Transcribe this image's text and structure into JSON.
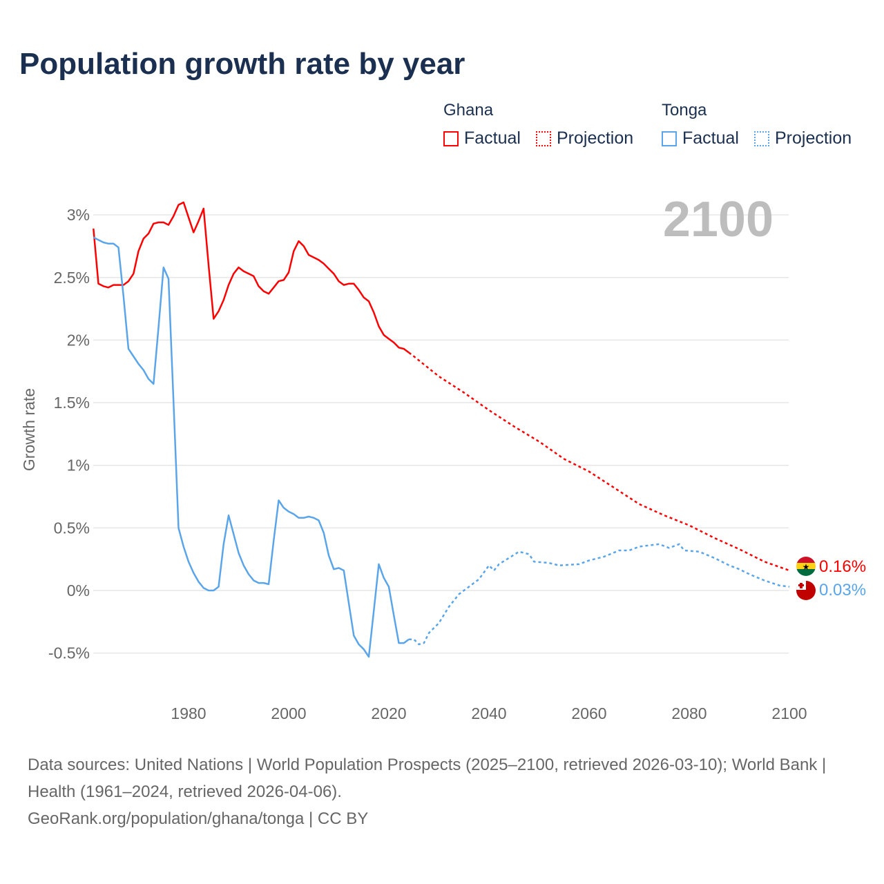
{
  "title": "Population growth rate by year",
  "legend": {
    "groups": [
      {
        "name": "Ghana",
        "factual": "Factual",
        "projection": "Projection",
        "color": "#ff0000"
      },
      {
        "name": "Tonga",
        "factual": "Factual",
        "projection": "Projection",
        "color": "#5aa5ea"
      }
    ]
  },
  "year_label": "2100",
  "end_labels": {
    "ghana": "0.16%",
    "tonga": "0.03%"
  },
  "source": {
    "line1": "Data sources: United Nations | World Population Prospects (2025–2100, retrieved 2026-03-10); World Bank | Health (1961–2024, retrieved 2026-04-06).",
    "line2": "GeoRank.org/population/ghana/tonga | CC BY"
  },
  "chart_data": {
    "type": "line",
    "title": "Population growth rate by year",
    "xlabel": "",
    "ylabel": "Growth rate",
    "xlim": [
      1961,
      2100
    ],
    "ylim": [
      -0.7,
      3.2
    ],
    "x_ticks": [
      1980,
      2000,
      2020,
      2040,
      2060,
      2080,
      2100
    ],
    "x_tick_labels": [
      "1980",
      "2000",
      "2020",
      "2040",
      "2060",
      "2080",
      "2100"
    ],
    "y_ticks": [
      -0.5,
      0,
      0.5,
      1,
      1.5,
      2,
      2.5,
      3
    ],
    "y_tick_labels": [
      "-0.5%",
      "0%",
      "0.5%",
      "1%",
      "1.5%",
      "2%",
      "2.5%",
      "3%"
    ],
    "grid": true,
    "legend_position": "top-right",
    "series": [
      {
        "name": "Ghana Factual",
        "color": "#ff0000",
        "style": "solid",
        "x": [
          1961,
          1962,
          1963,
          1964,
          1965,
          1966,
          1967,
          1968,
          1969,
          1970,
          1971,
          1972,
          1973,
          1974,
          1975,
          1976,
          1977,
          1978,
          1979,
          1980,
          1981,
          1982,
          1983,
          1984,
          1985,
          1986,
          1987,
          1988,
          1989,
          1990,
          1991,
          1992,
          1993,
          1994,
          1995,
          1996,
          1997,
          1998,
          1999,
          2000,
          2001,
          2002,
          2003,
          2004,
          2005,
          2006,
          2007,
          2008,
          2009,
          2010,
          2011,
          2012,
          2013,
          2014,
          2015,
          2016,
          2017,
          2018,
          2019,
          2020,
          2021,
          2022,
          2023,
          2024
        ],
        "y": [
          2.89,
          2.45,
          2.43,
          2.42,
          2.44,
          2.44,
          2.44,
          2.47,
          2.53,
          2.71,
          2.81,
          2.85,
          2.93,
          2.94,
          2.94,
          2.92,
          2.99,
          3.08,
          3.1,
          2.98,
          2.86,
          2.95,
          3.05,
          2.6,
          2.17,
          2.23,
          2.32,
          2.44,
          2.53,
          2.58,
          2.55,
          2.53,
          2.51,
          2.43,
          2.39,
          2.37,
          2.42,
          2.47,
          2.48,
          2.54,
          2.71,
          2.79,
          2.75,
          2.68,
          2.66,
          2.64,
          2.61,
          2.57,
          2.53,
          2.47,
          2.44,
          2.45,
          2.45,
          2.4,
          2.34,
          2.31,
          2.22,
          2.11,
          2.04,
          2.01,
          1.98,
          1.94,
          1.93,
          1.9
        ]
      },
      {
        "name": "Ghana Projection",
        "color": "#ff0000",
        "style": "dotted",
        "x": [
          2024,
          2025,
          2030,
          2035,
          2040,
          2045,
          2050,
          2055,
          2060,
          2065,
          2070,
          2075,
          2080,
          2085,
          2090,
          2095,
          2100
        ],
        "y": [
          1.9,
          1.87,
          1.71,
          1.58,
          1.44,
          1.31,
          1.19,
          1.05,
          0.95,
          0.82,
          0.69,
          0.6,
          0.52,
          0.42,
          0.33,
          0.23,
          0.16
        ]
      },
      {
        "name": "Tonga Factual",
        "color": "#5aa5ea",
        "style": "solid",
        "x": [
          1961,
          1962,
          1963,
          1964,
          1965,
          1966,
          1967,
          1968,
          1969,
          1970,
          1971,
          1972,
          1973,
          1974,
          1975,
          1976,
          1977,
          1978,
          1979,
          1980,
          1981,
          1982,
          1983,
          1984,
          1985,
          1986,
          1987,
          1988,
          1989,
          1990,
          1991,
          1992,
          1993,
          1994,
          1995,
          1996,
          1997,
          1998,
          1999,
          2000,
          2001,
          2002,
          2003,
          2004,
          2005,
          2006,
          2007,
          2008,
          2009,
          2010,
          2011,
          2012,
          2013,
          2014,
          2015,
          2016,
          2017,
          2018,
          2019,
          2020,
          2021,
          2022,
          2023,
          2024
        ],
        "y": [
          2.82,
          2.8,
          2.78,
          2.77,
          2.77,
          2.74,
          2.35,
          1.93,
          1.87,
          1.81,
          1.76,
          1.69,
          1.65,
          2.1,
          2.58,
          2.49,
          1.5,
          0.5,
          0.35,
          0.23,
          0.14,
          0.07,
          0.02,
          0.0,
          0.0,
          0.03,
          0.37,
          0.6,
          0.45,
          0.3,
          0.2,
          0.13,
          0.08,
          0.06,
          0.06,
          0.05,
          0.4,
          0.72,
          0.66,
          0.63,
          0.61,
          0.58,
          0.58,
          0.59,
          0.58,
          0.56,
          0.46,
          0.28,
          0.17,
          0.18,
          0.16,
          -0.1,
          -0.36,
          -0.43,
          -0.47,
          -0.53,
          -0.16,
          0.21,
          0.1,
          0.03,
          -0.2,
          -0.42,
          -0.42,
          -0.39
        ]
      },
      {
        "name": "Tonga Projection",
        "color": "#5aa5ea",
        "style": "dotted",
        "x": [
          2024,
          2025,
          2026,
          2027,
          2028,
          2030,
          2032,
          2034,
          2036,
          2038,
          2040,
          2041,
          2042,
          2044,
          2046,
          2048,
          2049,
          2052,
          2054,
          2058,
          2060,
          2063,
          2066,
          2068,
          2070,
          2072,
          2074,
          2076,
          2078,
          2079,
          2082,
          2085,
          2088,
          2090,
          2092,
          2095,
          2098,
          2100
        ],
        "y": [
          -0.39,
          -0.39,
          -0.43,
          -0.42,
          -0.34,
          -0.26,
          -0.13,
          -0.03,
          0.03,
          0.09,
          0.2,
          0.16,
          0.21,
          0.26,
          0.31,
          0.29,
          0.23,
          0.22,
          0.2,
          0.21,
          0.24,
          0.27,
          0.32,
          0.32,
          0.35,
          0.36,
          0.37,
          0.34,
          0.37,
          0.32,
          0.31,
          0.26,
          0.2,
          0.17,
          0.13,
          0.08,
          0.04,
          0.03
        ]
      }
    ]
  }
}
